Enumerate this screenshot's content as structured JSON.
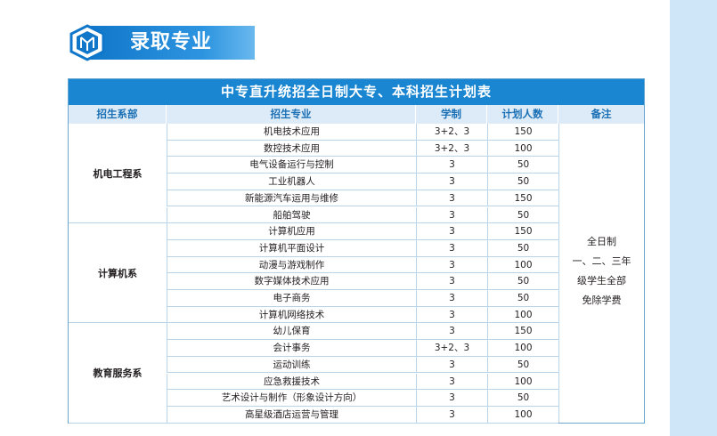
{
  "header": {
    "title": "录取专业",
    "logo_icon": "hexagon-logo-icon"
  },
  "table": {
    "title": "中专直升统招全日制大专、本科招生计划表",
    "columns": [
      "招生系部",
      "招生专业",
      "学制",
      "计划人数",
      "备注"
    ],
    "departments": [
      {
        "name": "机电工程系",
        "rows": [
          {
            "major": "机电技术应用",
            "duration": "3+2、3",
            "count": "150"
          },
          {
            "major": "数控技术应用",
            "duration": "3+2、3",
            "count": "100"
          },
          {
            "major": "电气设备运行与控制",
            "duration": "3",
            "count": "50"
          },
          {
            "major": "工业机器人",
            "duration": "3",
            "count": "50"
          },
          {
            "major": "新能源汽车运用与维修",
            "duration": "3",
            "count": "150"
          },
          {
            "major": "船舶驾驶",
            "duration": "3",
            "count": "50"
          }
        ]
      },
      {
        "name": "计算机系",
        "rows": [
          {
            "major": "计算机应用",
            "duration": "3",
            "count": "150"
          },
          {
            "major": "计算机平面设计",
            "duration": "3",
            "count": "50"
          },
          {
            "major": "动漫与游戏制作",
            "duration": "3",
            "count": "100"
          },
          {
            "major": "数字媒体技术应用",
            "duration": "3",
            "count": "50"
          },
          {
            "major": "电子商务",
            "duration": "3",
            "count": "50"
          },
          {
            "major": "计算机网络技术",
            "duration": "3",
            "count": "100"
          }
        ]
      },
      {
        "name": "教育服务系",
        "rows": [
          {
            "major": "幼儿保育",
            "duration": "3",
            "count": "150"
          },
          {
            "major": "会计事务",
            "duration": "3+2、3",
            "count": "100"
          },
          {
            "major": "运动训练",
            "duration": "3",
            "count": "50"
          },
          {
            "major": "应急救援技术",
            "duration": "3",
            "count": "100"
          },
          {
            "major": "艺术设计与制作（形象设计方向）",
            "duration": "3",
            "count": "50"
          },
          {
            "major": "高星级酒店运营与管理",
            "duration": "3",
            "count": "100"
          }
        ]
      }
    ],
    "remark_lines": [
      "全日制",
      "一、二、三年",
      "级学生全部",
      "免除学费"
    ]
  },
  "colors": {
    "title_bar": "#1a86d1",
    "header_bg": "#dcebf7",
    "header_text": "#1a6fb5",
    "side_band": "#cfe6f8"
  }
}
